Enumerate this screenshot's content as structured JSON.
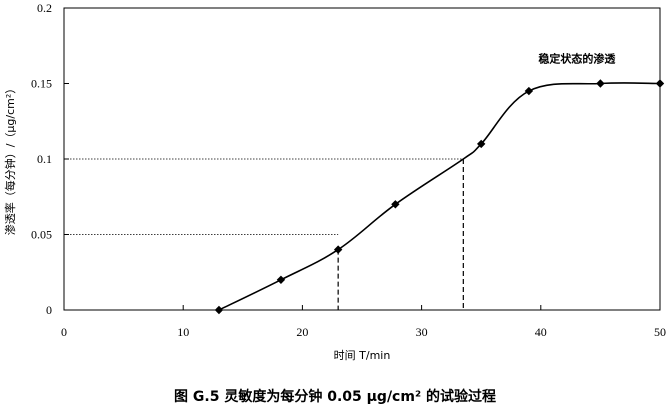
{
  "caption": "图 G.5   灵敏度为每分钟 0.05 μg/cm² 的试验过程",
  "chart_data": {
    "type": "line",
    "title": "",
    "xlabel": "时间 T/min",
    "ylabel": "渗透率（每分钟）/（μg/cm²）",
    "xlim": [
      0,
      50
    ],
    "ylim": [
      0,
      0.2
    ],
    "x_ticks": [
      0,
      10,
      20,
      30,
      40,
      50
    ],
    "y_ticks": [
      0,
      0.05,
      0.1,
      0.15,
      0.2
    ],
    "x_tick_labels": [
      "0",
      "10",
      "20",
      "30",
      "40",
      "50"
    ],
    "y_tick_labels": [
      "0",
      "0.05",
      "0.1",
      "0.15",
      "0.2"
    ],
    "grid": false,
    "legend": null,
    "series": [
      {
        "x": [
          13,
          18.2,
          23,
          27.8,
          33.5,
          35,
          39,
          45,
          50
        ],
        "y": [
          0,
          0.02,
          0.04,
          0.07,
          0.1,
          0.11,
          0.145,
          0.15,
          0.15
        ],
        "marker": "diamond",
        "marker_x": [
          13,
          18.2,
          23,
          27.8,
          35,
          39,
          45,
          50
        ],
        "color": "#000000"
      }
    ],
    "annotations": [
      {
        "text": "稳定状态的渗透",
        "x": 45,
        "y": 0.15
      }
    ],
    "reference_lines": [
      {
        "y": 0.05,
        "x_end": 23,
        "style": "dotted"
      },
      {
        "y": 0.1,
        "x_end": 33.5,
        "style": "dotted"
      },
      {
        "x": 23,
        "y_end": 0.04,
        "style": "dashed"
      },
      {
        "x": 33.5,
        "y_end": 0.1,
        "style": "dashed"
      }
    ]
  }
}
